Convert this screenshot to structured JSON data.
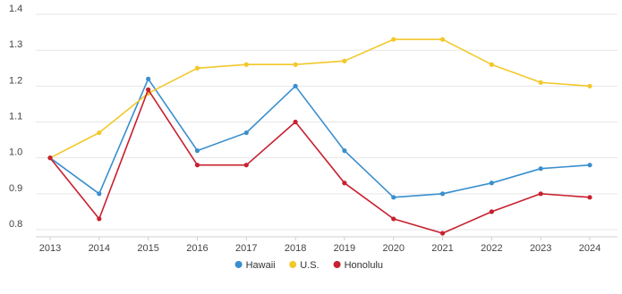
{
  "chart_data": {
    "type": "line",
    "title": "",
    "xlabel": "",
    "ylabel": "",
    "x": [
      "2013",
      "2014",
      "2015",
      "2016",
      "2017",
      "2018",
      "2019",
      "2020",
      "2021",
      "2022",
      "2023",
      "2024"
    ],
    "ylim": [
      0.78,
      1.42
    ],
    "yticks": [
      0.8,
      0.9,
      1.0,
      1.1,
      1.2,
      1.3,
      1.4
    ],
    "ytick_labels": [
      "0.8",
      "0.9",
      "1.0",
      "1.1",
      "1.2",
      "1.3",
      "1.4"
    ],
    "grid": true,
    "legend_position": "bottom",
    "series": [
      {
        "name": "Hawaii",
        "color": "#3a8fce",
        "values": [
          1.0,
          0.9,
          1.22,
          1.02,
          1.07,
          1.2,
          1.02,
          0.89,
          0.9,
          0.93,
          0.97,
          0.98
        ]
      },
      {
        "name": "U.S.",
        "color": "#f2c82a",
        "values": [
          1.0,
          1.07,
          1.18,
          1.25,
          1.26,
          1.26,
          1.27,
          1.33,
          1.33,
          1.26,
          1.21,
          1.2
        ]
      },
      {
        "name": "Honolulu",
        "color": "#c8202f",
        "values": [
          1.0,
          0.83,
          1.19,
          0.98,
          0.98,
          1.1,
          0.93,
          0.83,
          0.79,
          0.85,
          0.9,
          0.89
        ]
      }
    ]
  }
}
